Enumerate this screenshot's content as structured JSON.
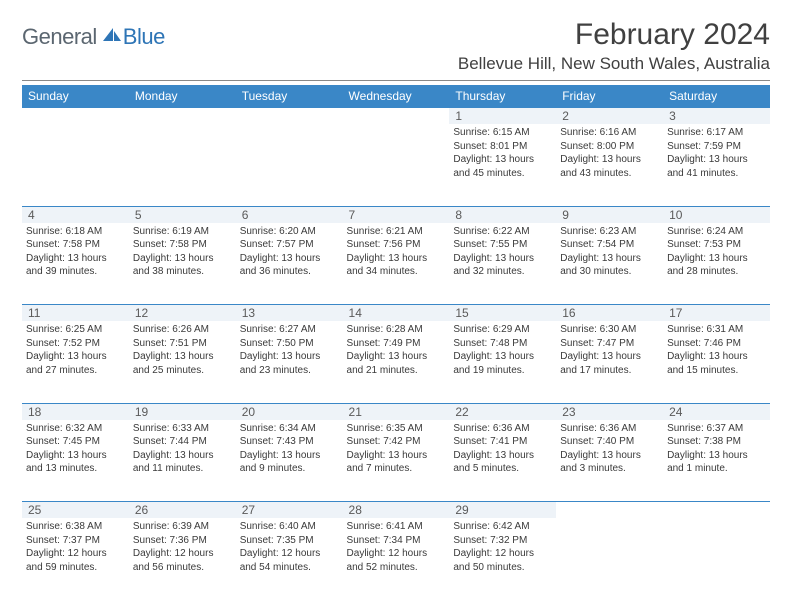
{
  "logo": {
    "general": "General",
    "blue": "Blue"
  },
  "title": "February 2024",
  "location": "Bellevue Hill, New South Wales, Australia",
  "colors": {
    "header_bg": "#3a87c7",
    "header_text": "#ffffff",
    "daynum_bg": "#eef3f8",
    "rule": "#3a87c7",
    "logo_gray": "#5b6670",
    "logo_blue": "#2e75b6"
  },
  "dayHeaders": [
    "Sunday",
    "Monday",
    "Tuesday",
    "Wednesday",
    "Thursday",
    "Friday",
    "Saturday"
  ],
  "weeks": [
    [
      null,
      null,
      null,
      null,
      {
        "n": "1",
        "sr": "6:15 AM",
        "ss": "8:01 PM",
        "dl": "13 hours and 45 minutes."
      },
      {
        "n": "2",
        "sr": "6:16 AM",
        "ss": "8:00 PM",
        "dl": "13 hours and 43 minutes."
      },
      {
        "n": "3",
        "sr": "6:17 AM",
        "ss": "7:59 PM",
        "dl": "13 hours and 41 minutes."
      }
    ],
    [
      {
        "n": "4",
        "sr": "6:18 AM",
        "ss": "7:58 PM",
        "dl": "13 hours and 39 minutes."
      },
      {
        "n": "5",
        "sr": "6:19 AM",
        "ss": "7:58 PM",
        "dl": "13 hours and 38 minutes."
      },
      {
        "n": "6",
        "sr": "6:20 AM",
        "ss": "7:57 PM",
        "dl": "13 hours and 36 minutes."
      },
      {
        "n": "7",
        "sr": "6:21 AM",
        "ss": "7:56 PM",
        "dl": "13 hours and 34 minutes."
      },
      {
        "n": "8",
        "sr": "6:22 AM",
        "ss": "7:55 PM",
        "dl": "13 hours and 32 minutes."
      },
      {
        "n": "9",
        "sr": "6:23 AM",
        "ss": "7:54 PM",
        "dl": "13 hours and 30 minutes."
      },
      {
        "n": "10",
        "sr": "6:24 AM",
        "ss": "7:53 PM",
        "dl": "13 hours and 28 minutes."
      }
    ],
    [
      {
        "n": "11",
        "sr": "6:25 AM",
        "ss": "7:52 PM",
        "dl": "13 hours and 27 minutes."
      },
      {
        "n": "12",
        "sr": "6:26 AM",
        "ss": "7:51 PM",
        "dl": "13 hours and 25 minutes."
      },
      {
        "n": "13",
        "sr": "6:27 AM",
        "ss": "7:50 PM",
        "dl": "13 hours and 23 minutes."
      },
      {
        "n": "14",
        "sr": "6:28 AM",
        "ss": "7:49 PM",
        "dl": "13 hours and 21 minutes."
      },
      {
        "n": "15",
        "sr": "6:29 AM",
        "ss": "7:48 PM",
        "dl": "13 hours and 19 minutes."
      },
      {
        "n": "16",
        "sr": "6:30 AM",
        "ss": "7:47 PM",
        "dl": "13 hours and 17 minutes."
      },
      {
        "n": "17",
        "sr": "6:31 AM",
        "ss": "7:46 PM",
        "dl": "13 hours and 15 minutes."
      }
    ],
    [
      {
        "n": "18",
        "sr": "6:32 AM",
        "ss": "7:45 PM",
        "dl": "13 hours and 13 minutes."
      },
      {
        "n": "19",
        "sr": "6:33 AM",
        "ss": "7:44 PM",
        "dl": "13 hours and 11 minutes."
      },
      {
        "n": "20",
        "sr": "6:34 AM",
        "ss": "7:43 PM",
        "dl": "13 hours and 9 minutes."
      },
      {
        "n": "21",
        "sr": "6:35 AM",
        "ss": "7:42 PM",
        "dl": "13 hours and 7 minutes."
      },
      {
        "n": "22",
        "sr": "6:36 AM",
        "ss": "7:41 PM",
        "dl": "13 hours and 5 minutes."
      },
      {
        "n": "23",
        "sr": "6:36 AM",
        "ss": "7:40 PM",
        "dl": "13 hours and 3 minutes."
      },
      {
        "n": "24",
        "sr": "6:37 AM",
        "ss": "7:38 PM",
        "dl": "13 hours and 1 minute."
      }
    ],
    [
      {
        "n": "25",
        "sr": "6:38 AM",
        "ss": "7:37 PM",
        "dl": "12 hours and 59 minutes."
      },
      {
        "n": "26",
        "sr": "6:39 AM",
        "ss": "7:36 PM",
        "dl": "12 hours and 56 minutes."
      },
      {
        "n": "27",
        "sr": "6:40 AM",
        "ss": "7:35 PM",
        "dl": "12 hours and 54 minutes."
      },
      {
        "n": "28",
        "sr": "6:41 AM",
        "ss": "7:34 PM",
        "dl": "12 hours and 52 minutes."
      },
      {
        "n": "29",
        "sr": "6:42 AM",
        "ss": "7:32 PM",
        "dl": "12 hours and 50 minutes."
      },
      null,
      null
    ]
  ],
  "labels": {
    "sunrise": "Sunrise: ",
    "sunset": "Sunset: ",
    "daylight": "Daylight: "
  }
}
